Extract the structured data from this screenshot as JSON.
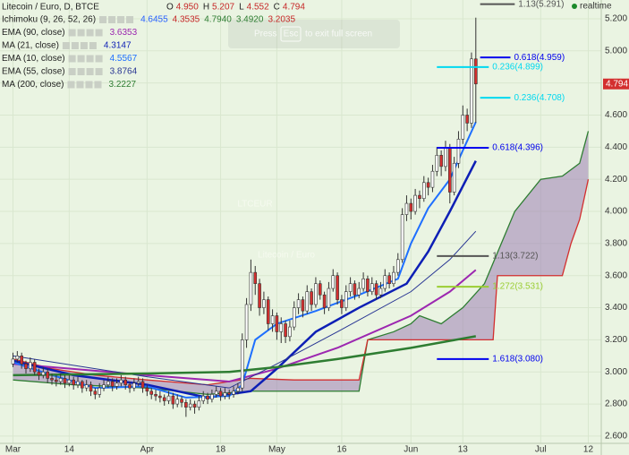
{
  "chart_data": {
    "type": "candlestick",
    "title": "Litecoin / Euro, D, BTCE",
    "ohlc_header": [
      {
        "label": "O",
        "value": "4.950"
      },
      {
        "label": "H",
        "value": "5.207"
      },
      {
        "label": "L",
        "value": "4.552"
      },
      {
        "label": "C",
        "value": "4.794"
      }
    ],
    "watermark": {
      "symbol": "LTCEUR",
      "description": "Litecoin / Euro"
    },
    "overlay": {
      "before": "Press",
      "key": "Esc",
      "after": "to exit full screen"
    },
    "status": "realtime",
    "up_color": "#ffffff",
    "down_color": "#d32f2f",
    "outline_color": "#333333",
    "grid": true,
    "xlim": [
      "Feb 27",
      "Jul 15"
    ],
    "xticks": [
      {
        "value": "Mar 1",
        "label": "Mar"
      },
      {
        "value": "Mar 14",
        "label": "14"
      },
      {
        "value": "Apr 1",
        "label": "Apr"
      },
      {
        "value": "Apr 18",
        "label": "18"
      },
      {
        "value": "May 1",
        "label": "May"
      },
      {
        "value": "May 16",
        "label": "16"
      },
      {
        "value": "Jun 1",
        "label": "Jun"
      },
      {
        "value": "Jun 13",
        "label": "13"
      },
      {
        "value": "Jul 1",
        "label": "Jul"
      },
      {
        "value": "Jul 12",
        "label": "12"
      }
    ],
    "ylim": [
      2.555,
      5.317
    ],
    "yticks": [
      {
        "value": 2.6,
        "label": "2.600"
      },
      {
        "value": 2.8,
        "label": "2.800"
      },
      {
        "value": 3.0,
        "label": "3.000"
      },
      {
        "value": 3.2,
        "label": "3.200"
      },
      {
        "value": 3.4,
        "label": "3.400"
      },
      {
        "value": 3.6,
        "label": "3.600"
      },
      {
        "value": 3.8,
        "label": "3.800"
      },
      {
        "value": 4.0,
        "label": "4.000"
      },
      {
        "value": 4.2,
        "label": "4.200"
      },
      {
        "value": 4.4,
        "label": "4.400"
      },
      {
        "value": 4.6,
        "label": "4.600"
      },
      {
        "value": 4.8,
        "label": "4.800"
      },
      {
        "value": 5.0,
        "label": "5.000"
      },
      {
        "value": 5.2,
        "label": "5.200"
      }
    ],
    "x": [
      "Mar 1",
      "Mar 2",
      "Mar 3",
      "Mar 4",
      "Mar 5",
      "Mar 6",
      "Mar 7",
      "Mar 8",
      "Mar 9",
      "Mar 10",
      "Mar 11",
      "Mar 12",
      "Mar 13",
      "Mar 14",
      "Mar 15",
      "Mar 16",
      "Mar 17",
      "Mar 18",
      "Mar 19",
      "Mar 20",
      "Mar 21",
      "Mar 22",
      "Mar 23",
      "Mar 24",
      "Mar 25",
      "Mar 26",
      "Mar 27",
      "Mar 28",
      "Mar 29",
      "Mar 30",
      "Mar 31",
      "Apr 1",
      "Apr 2",
      "Apr 3",
      "Apr 4",
      "Apr 5",
      "Apr 6",
      "Apr 7",
      "Apr 8",
      "Apr 9",
      "Apr 10",
      "Apr 11",
      "Apr 12",
      "Apr 13",
      "Apr 14",
      "Apr 15",
      "Apr 16",
      "Apr 17",
      "Apr 18",
      "Apr 19",
      "Apr 20",
      "Apr 21",
      "Apr 22",
      "Apr 23",
      "Apr 24",
      "Apr 25",
      "Apr 26",
      "Apr 27",
      "Apr 28",
      "Apr 29",
      "Apr 30",
      "May 1",
      "May 2",
      "May 3",
      "May 4",
      "May 5",
      "May 6",
      "May 7",
      "May 8",
      "May 9",
      "May 10",
      "May 11",
      "May 12",
      "May 13",
      "May 14",
      "May 15",
      "May 16",
      "May 17",
      "May 18",
      "May 19",
      "May 20",
      "May 21",
      "May 22",
      "May 23",
      "May 24",
      "May 25",
      "May 26",
      "May 27",
      "May 28",
      "May 29",
      "May 30",
      "May 31",
      "Jun 1",
      "Jun 2",
      "Jun 3",
      "Jun 4",
      "Jun 5",
      "Jun 6",
      "Jun 7",
      "Jun 8",
      "Jun 9",
      "Jun 10",
      "Jun 11",
      "Jun 12",
      "Jun 13",
      "Jun 14",
      "Jun 15",
      "Jun 16"
    ],
    "ohlc": [
      [
        3.05,
        3.12,
        3.03,
        3.08
      ],
      [
        3.08,
        3.13,
        3.06,
        3.1
      ],
      [
        3.1,
        3.12,
        3.02,
        3.05
      ],
      [
        3.05,
        3.07,
        2.99,
        3.02
      ],
      [
        3.02,
        3.09,
        3.0,
        3.06
      ],
      [
        3.06,
        3.08,
        2.98,
        3.0
      ],
      [
        3.0,
        3.02,
        2.95,
        2.98
      ],
      [
        2.98,
        3.03,
        2.96,
        3.0
      ],
      [
        3.0,
        3.02,
        2.93,
        2.96
      ],
      [
        2.96,
        2.99,
        2.92,
        2.95
      ],
      [
        2.95,
        2.98,
        2.91,
        2.94
      ],
      [
        2.94,
        2.99,
        2.92,
        2.96
      ],
      [
        2.96,
        2.98,
        2.9,
        2.93
      ],
      [
        2.93,
        2.98,
        2.91,
        2.95
      ],
      [
        2.95,
        2.97,
        2.89,
        2.92
      ],
      [
        2.92,
        2.97,
        2.9,
        2.94
      ],
      [
        2.94,
        2.95,
        2.87,
        2.9
      ],
      [
        2.9,
        2.95,
        2.88,
        2.92
      ],
      [
        2.92,
        2.94,
        2.85,
        2.88
      ],
      [
        2.88,
        2.9,
        2.83,
        2.86
      ],
      [
        2.86,
        2.93,
        2.84,
        2.9
      ],
      [
        2.9,
        2.95,
        2.88,
        2.92
      ],
      [
        2.92,
        2.97,
        2.9,
        2.94
      ],
      [
        2.94,
        2.96,
        2.88,
        2.91
      ],
      [
        2.91,
        2.96,
        2.89,
        2.93
      ],
      [
        2.93,
        2.98,
        2.91,
        2.95
      ],
      [
        2.95,
        2.97,
        2.89,
        2.92
      ],
      [
        2.92,
        2.94,
        2.87,
        2.9
      ],
      [
        2.9,
        2.96,
        2.88,
        2.93
      ],
      [
        2.93,
        2.97,
        2.91,
        2.94
      ],
      [
        2.94,
        2.96,
        2.87,
        2.9
      ],
      [
        2.9,
        2.92,
        2.85,
        2.88
      ],
      [
        2.88,
        2.9,
        2.83,
        2.86
      ],
      [
        2.86,
        2.89,
        2.82,
        2.85
      ],
      [
        2.85,
        2.88,
        2.81,
        2.84
      ],
      [
        2.84,
        2.86,
        2.79,
        2.82
      ],
      [
        2.82,
        2.88,
        2.8,
        2.85
      ],
      [
        2.85,
        2.87,
        2.77,
        2.8
      ],
      [
        2.8,
        2.86,
        2.78,
        2.83
      ],
      [
        2.83,
        2.85,
        2.78,
        2.81
      ],
      [
        2.81,
        2.83,
        2.72,
        2.78
      ],
      [
        2.78,
        2.83,
        2.76,
        2.8
      ],
      [
        2.8,
        2.82,
        2.74,
        2.78
      ],
      [
        2.78,
        2.85,
        2.76,
        2.82
      ],
      [
        2.82,
        2.88,
        2.8,
        2.85
      ],
      [
        2.85,
        2.87,
        2.8,
        2.83
      ],
      [
        2.83,
        2.89,
        2.81,
        2.86
      ],
      [
        2.86,
        2.91,
        2.84,
        2.88
      ],
      [
        2.88,
        2.9,
        2.82,
        2.85
      ],
      [
        2.85,
        2.9,
        2.83,
        2.87
      ],
      [
        2.87,
        2.89,
        2.83,
        2.86
      ],
      [
        2.86,
        2.91,
        2.84,
        2.88
      ],
      [
        2.88,
        2.93,
        2.86,
        2.9
      ],
      [
        2.9,
        3.24,
        2.88,
        3.2
      ],
      [
        3.2,
        3.46,
        3.15,
        3.42
      ],
      [
        3.42,
        3.7,
        3.38,
        3.62
      ],
      [
        3.62,
        3.66,
        3.48,
        3.55
      ],
      [
        3.55,
        3.58,
        3.35,
        3.4
      ],
      [
        3.4,
        3.5,
        3.36,
        3.45
      ],
      [
        3.45,
        3.47,
        3.26,
        3.3
      ],
      [
        3.3,
        3.39,
        3.25,
        3.35
      ],
      [
        3.35,
        3.37,
        3.2,
        3.25
      ],
      [
        3.25,
        3.34,
        3.18,
        3.3
      ],
      [
        3.3,
        3.32,
        3.18,
        3.22
      ],
      [
        3.22,
        3.32,
        3.19,
        3.28
      ],
      [
        3.28,
        3.44,
        3.26,
        3.4
      ],
      [
        3.4,
        3.49,
        3.36,
        3.45
      ],
      [
        3.45,
        3.47,
        3.34,
        3.38
      ],
      [
        3.38,
        3.54,
        3.36,
        3.5
      ],
      [
        3.5,
        3.52,
        3.38,
        3.42
      ],
      [
        3.42,
        3.59,
        3.4,
        3.55
      ],
      [
        3.55,
        3.57,
        3.45,
        3.48
      ],
      [
        3.48,
        3.5,
        3.36,
        3.4
      ],
      [
        3.4,
        3.56,
        3.38,
        3.52
      ],
      [
        3.52,
        3.64,
        3.5,
        3.6
      ],
      [
        3.6,
        3.62,
        3.42,
        3.45
      ],
      [
        3.45,
        3.48,
        3.36,
        3.4
      ],
      [
        3.4,
        3.54,
        3.38,
        3.5
      ],
      [
        3.5,
        3.59,
        3.47,
        3.55
      ],
      [
        3.55,
        3.57,
        3.45,
        3.48
      ],
      [
        3.48,
        3.56,
        3.46,
        3.52
      ],
      [
        3.52,
        3.62,
        3.5,
        3.58
      ],
      [
        3.58,
        3.6,
        3.47,
        3.5
      ],
      [
        3.5,
        3.59,
        3.48,
        3.55
      ],
      [
        3.55,
        3.57,
        3.45,
        3.48
      ],
      [
        3.48,
        3.56,
        3.46,
        3.52
      ],
      [
        3.52,
        3.64,
        3.5,
        3.6
      ],
      [
        3.6,
        3.62,
        3.52,
        3.55
      ],
      [
        3.55,
        3.66,
        3.53,
        3.62
      ],
      [
        3.62,
        3.74,
        3.6,
        3.7
      ],
      [
        3.7,
        4.02,
        3.68,
        3.98
      ],
      [
        3.98,
        4.1,
        3.94,
        4.05
      ],
      [
        4.05,
        4.08,
        3.95,
        4.0
      ],
      [
        4.0,
        4.14,
        3.98,
        4.1
      ],
      [
        4.1,
        4.13,
        4.02,
        4.08
      ],
      [
        4.08,
        4.22,
        4.06,
        4.18
      ],
      [
        4.18,
        4.21,
        4.1,
        4.15
      ],
      [
        4.15,
        4.29,
        4.12,
        4.25
      ],
      [
        4.25,
        4.4,
        4.22,
        4.35
      ],
      [
        4.35,
        4.38,
        4.22,
        4.28
      ],
      [
        4.28,
        4.44,
        4.25,
        4.4
      ],
      [
        4.4,
        4.42,
        4.05,
        4.12
      ],
      [
        4.12,
        4.34,
        4.1,
        4.3
      ],
      [
        4.3,
        4.5,
        4.27,
        4.45
      ],
      [
        4.45,
        4.66,
        4.42,
        4.6
      ],
      [
        4.6,
        4.64,
        4.5,
        4.55
      ],
      [
        4.55,
        4.99,
        4.52,
        4.95
      ],
      [
        4.95,
        5.207,
        4.552,
        4.794
      ]
    ],
    "ichimoku": {
      "name": "Ichimoku (9, 26, 52, 26)",
      "readouts": [
        {
          "text": "4.6455",
          "color": "#2962ff"
        },
        {
          "text": "4.3535",
          "color": "#c62828"
        },
        {
          "text": "4.7940",
          "color": "#2e7d32"
        },
        {
          "text": "3.4920",
          "color": "#2e7d32"
        },
        {
          "text": "3.2035",
          "color": "#c62828"
        }
      ],
      "fill": "#9c7fb4",
      "span_a": {
        "color": "#2e7d32",
        "x": [
          "Mar 1",
          "Mar 15",
          "Apr 1",
          "Apr 15",
          "Apr 25",
          "May 5",
          "May 20",
          "May 22",
          "May 28",
          "Jun 1",
          "Jun 3",
          "Jun 8",
          "Jun 13",
          "Jun 18",
          "Jun 25",
          "Jul 1",
          "Jul 6",
          "Jul 10",
          "Jul 12"
        ],
        "values": [
          2.95,
          2.92,
          2.9,
          2.86,
          2.88,
          2.88,
          2.88,
          3.2,
          3.25,
          3.3,
          3.35,
          3.3,
          3.4,
          3.55,
          4.0,
          4.2,
          4.22,
          4.3,
          4.5
        ]
      },
      "span_b": {
        "color": "#d32f2f",
        "x": [
          "Mar 1",
          "Mar 10",
          "Mar 20",
          "Apr 1",
          "Apr 15",
          "Apr 25",
          "May 5",
          "May 20",
          "May 22",
          "Jun 20",
          "Jun 21",
          "Jul 6",
          "Jul 8",
          "Jul 10",
          "Jul 12"
        ],
        "values": [
          3.08,
          3.02,
          2.98,
          2.95,
          2.92,
          2.96,
          2.95,
          2.95,
          3.2,
          3.2,
          3.6,
          3.6,
          3.8,
          3.95,
          4.2
        ]
      }
    },
    "indicators": [
      {
        "name": "EMA (90, close)",
        "color": "#9c27b0",
        "width": 2,
        "readouts": [
          {
            "text": "3.6353",
            "color": "#9c27b0"
          }
        ],
        "x": [
          "Mar 1",
          "Apr 1",
          "Apr 20",
          "May 1",
          "May 15",
          "Jun 1",
          "Jun 10",
          "Jun 16"
        ],
        "values": [
          3.05,
          2.98,
          2.94,
          3.02,
          3.15,
          3.35,
          3.5,
          3.6353
        ]
      },
      {
        "name": "MA (21, close)",
        "color": "#0d1fb5",
        "width": 2.5,
        "readouts": [
          {
            "text": "4.3147",
            "color": "#0d1fb5"
          }
        ],
        "x": [
          "Mar 1",
          "Mar 15",
          "Apr 1",
          "Apr 15",
          "Apr 25",
          "May 1",
          "May 10",
          "May 20",
          "May 31",
          "Jun 5",
          "Jun 10",
          "Jun 16"
        ],
        "values": [
          3.07,
          2.98,
          2.92,
          2.84,
          2.88,
          3.02,
          3.25,
          3.4,
          3.55,
          3.75,
          4.0,
          4.3147
        ]
      },
      {
        "name": "EMA (10, close)",
        "color": "#1e6fff",
        "width": 2,
        "readouts": [
          {
            "text": "4.5567",
            "color": "#1e6fff"
          }
        ],
        "x": [
          "Mar 1",
          "Mar 10",
          "Mar 20",
          "Apr 1",
          "Apr 10",
          "Apr 20",
          "Apr 23",
          "Apr 26",
          "May 1",
          "May 10",
          "May 20",
          "May 29",
          "Jun 1",
          "Jun 5",
          "Jun 10",
          "Jun 13",
          "Jun 16"
        ],
        "values": [
          3.06,
          2.98,
          2.9,
          2.91,
          2.84,
          2.85,
          2.92,
          3.2,
          3.3,
          3.38,
          3.48,
          3.58,
          3.8,
          4.02,
          4.2,
          4.38,
          4.5567
        ]
      },
      {
        "name": "EMA (55, close)",
        "color": "#283593",
        "width": 1,
        "readouts": [
          {
            "text": "3.8764",
            "color": "#283593"
          }
        ],
        "x": [
          "Mar 1",
          "Apr 1",
          "Apr 20",
          "May 1",
          "May 15",
          "Jun 1",
          "Jun 10",
          "Jun 16"
        ],
        "values": [
          3.1,
          2.97,
          2.9,
          3.05,
          3.25,
          3.5,
          3.7,
          3.8764
        ]
      },
      {
        "name": "MA (200, close)",
        "color": "#2e7d32",
        "width": 2.5,
        "readouts": [
          {
            "text": "3.2227",
            "color": "#2e7d32"
          }
        ],
        "x": [
          "Mar 1",
          "Apr 1",
          "Apr 20",
          "May 1",
          "May 15",
          "Jun 1",
          "Jun 16"
        ],
        "values": [
          2.98,
          2.99,
          3.0,
          3.03,
          3.08,
          3.15,
          3.2227
        ]
      }
    ],
    "levels": [
      {
        "label": "1.13(5.291)",
        "value": 5.291,
        "color": "#555555",
        "x": [
          "Jun 17",
          "Jun 25"
        ]
      },
      {
        "label": "0.618(4.959)",
        "value": 4.959,
        "color": "#0000ee",
        "x": [
          "Jun 17",
          "Jun 24"
        ]
      },
      {
        "label": "0.236(4.899)",
        "value": 4.899,
        "color": "#00d8f0",
        "x": [
          "Jun 7",
          "Jun 19"
        ]
      },
      {
        "label": "0.236(4.708)",
        "value": 4.708,
        "color": "#00d8f0",
        "x": [
          "Jun 17",
          "Jun 24"
        ]
      },
      {
        "label": "0.618(4.396)",
        "value": 4.396,
        "color": "#0000ee",
        "x": [
          "Jun 7",
          "Jun 19"
        ]
      },
      {
        "label": "1.13(3.722)",
        "value": 3.722,
        "color": "#555555",
        "x": [
          "Jun 7",
          "Jun 19"
        ]
      },
      {
        "label": "1.272(3.531)",
        "value": 3.531,
        "color": "#9acd32",
        "x": [
          "Jun 7",
          "Jun 19"
        ]
      },
      {
        "label": "1.618(3.080)",
        "value": 3.08,
        "color": "#0000ee",
        "x": [
          "Jun 7",
          "Jun 19"
        ]
      }
    ]
  }
}
